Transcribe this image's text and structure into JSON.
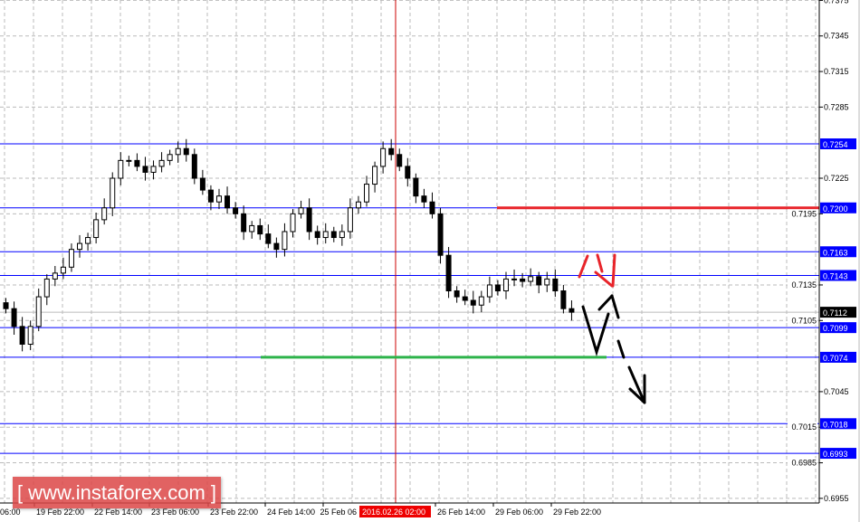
{
  "chart_data": {
    "type": "candlestick",
    "y_ticks": [
      "0.7375",
      "0.7345",
      "0.7315",
      "0.7285",
      "0.7225",
      "0.7195",
      "0.7135",
      "0.7105",
      "0.7045",
      "0.7015",
      "0.6985",
      "0.6955"
    ],
    "ylim": [
      0.6955,
      0.7375
    ],
    "grid": true,
    "x_ticks": [
      "06:00",
      "19 Feb 22:00",
      "22 Feb 14:00",
      "23 Feb 06:00",
      "23 Feb 22:00",
      "24 Feb 14:00",
      "25 Feb 06"
    ],
    "x_ticks_after_cursor": [
      "26 Feb 14:00",
      "29 Feb 06:00",
      "29 Feb 22:00"
    ],
    "cursor_time": "2016.02.26 02:00",
    "current_price": "0.7112",
    "levels": [
      {
        "label": "0.7254",
        "value": 0.7254
      },
      {
        "label": "0.7200",
        "value": 0.72
      },
      {
        "label": "0.7163",
        "value": 0.7163
      },
      {
        "label": "0.7143",
        "value": 0.7143
      },
      {
        "label": "0.7099",
        "value": 0.7099
      },
      {
        "label": "0.7074",
        "value": 0.7074
      },
      {
        "label": "0.7018",
        "value": 0.7018
      },
      {
        "label": "0.6993",
        "value": 0.6993
      }
    ],
    "resistance_value": 0.72,
    "support_value": 0.7074,
    "closes": [
      0.7115,
      0.71,
      0.7085,
      0.71,
      0.7125,
      0.714,
      0.7145,
      0.715,
      0.7165,
      0.717,
      0.7175,
      0.719,
      0.72,
      0.7225,
      0.724,
      0.724,
      0.7235,
      0.723,
      0.7235,
      0.724,
      0.7245,
      0.725,
      0.7245,
      0.7225,
      0.7215,
      0.7205,
      0.721,
      0.72,
      0.7195,
      0.718,
      0.7185,
      0.7178,
      0.717,
      0.7165,
      0.718,
      0.7195,
      0.72,
      0.718,
      0.7175,
      0.718,
      0.7175,
      0.718,
      0.72,
      0.7205,
      0.722,
      0.7235,
      0.725,
      0.7245,
      0.7235,
      0.7225,
      0.721,
      0.7205,
      0.7195,
      0.716,
      0.713,
      0.7125,
      0.7122,
      0.7118,
      0.7125,
      0.7135,
      0.713,
      0.714,
      0.714,
      0.7138,
      0.7142,
      0.7135,
      0.714,
      0.713,
      0.7115,
      0.7112
    ],
    "colors": {
      "level": "#0000ff",
      "resistance": "#e8242a",
      "support": "#2db34a",
      "bull_fill": "#ffffff",
      "bear_fill": "#000000",
      "cursor": "#cc0000",
      "price_label_bg": "#0000ff",
      "current_label_bg": "#000000"
    }
  },
  "watermark": "[ www.instaforex.com ]"
}
